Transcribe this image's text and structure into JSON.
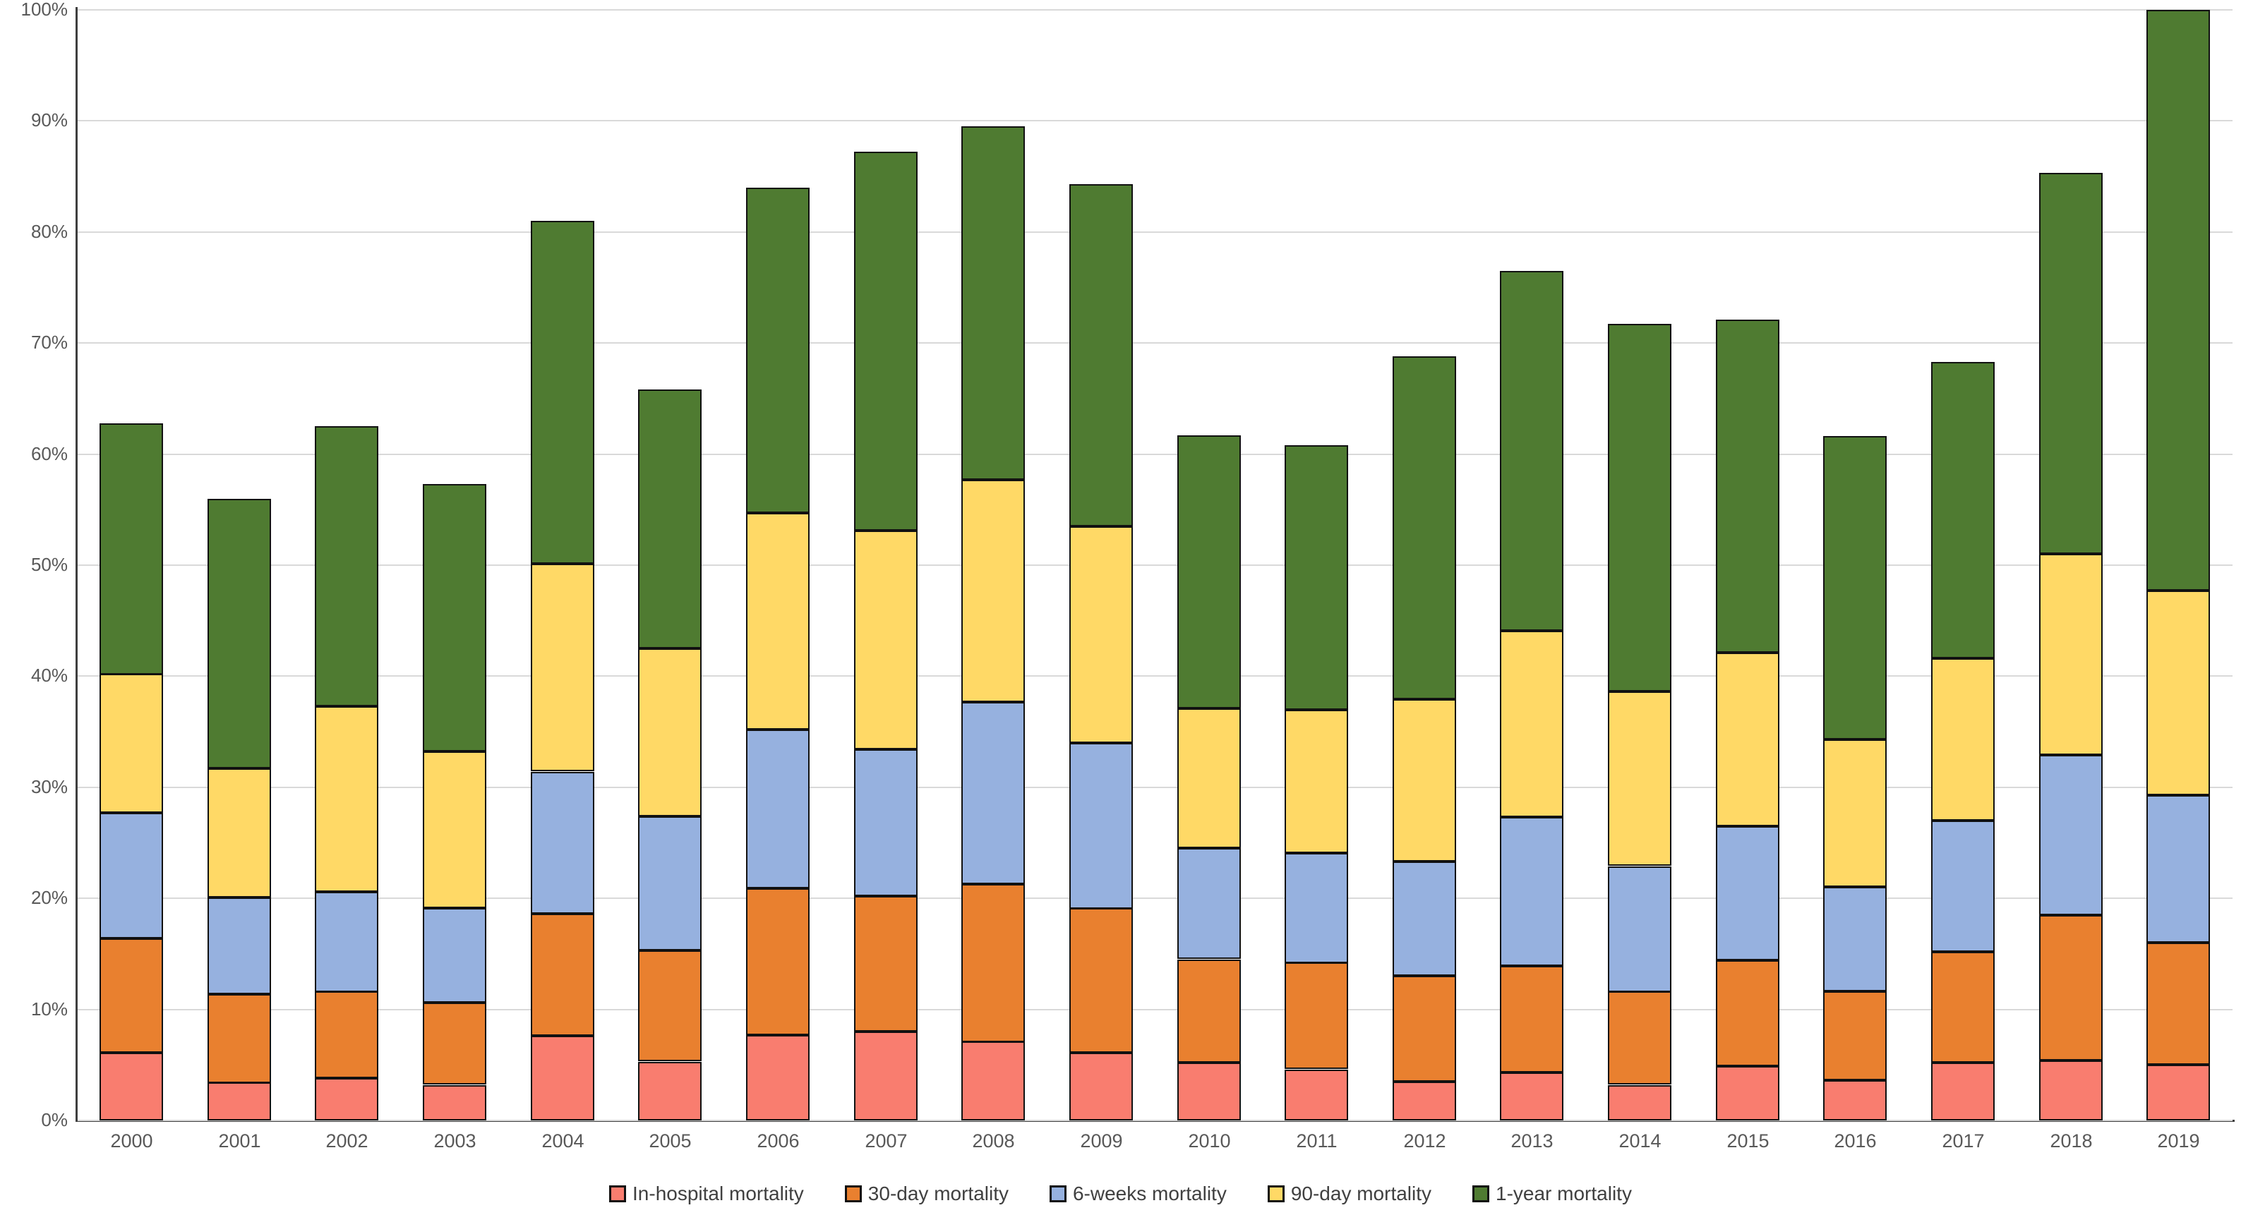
{
  "chart_data": {
    "type": "bar",
    "stacked": true,
    "unit": "percent",
    "title": "",
    "xlabel": "",
    "ylabel": "",
    "grid": true,
    "legend_position": "bottom",
    "categories": [
      "2000",
      "2001",
      "2002",
      "2003",
      "2004",
      "2005",
      "2006",
      "2007",
      "2008",
      "2009",
      "2010",
      "2011",
      "2012",
      "2013",
      "2014",
      "2015",
      "2016",
      "2017",
      "2018",
      "2019"
    ],
    "series": [
      {
        "name": "In-hospital mortality",
        "color": "#f97d6f",
        "values": [
          6.1,
          3.4,
          3.8,
          3.2,
          7.6,
          5.3,
          7.7,
          8.0,
          7.1,
          6.1,
          5.2,
          4.6,
          3.5,
          4.3,
          3.2,
          4.9,
          3.6,
          5.2,
          5.4,
          5.0
        ]
      },
      {
        "name": "30-day mortality",
        "color": "#e9802f",
        "values": [
          10.3,
          8.0,
          7.8,
          7.4,
          11.0,
          10.0,
          13.2,
          12.2,
          14.2,
          13.0,
          9.3,
          9.6,
          9.5,
          9.6,
          8.4,
          9.5,
          8.0,
          10.0,
          13.1,
          11.0
        ]
      },
      {
        "name": "6-weeks mortality",
        "color": "#96b1df",
        "values": [
          11.3,
          8.7,
          9.0,
          8.5,
          12.8,
          12.1,
          14.3,
          13.2,
          16.4,
          14.9,
          10.0,
          9.9,
          10.3,
          13.4,
          11.3,
          12.1,
          9.4,
          11.8,
          14.4,
          13.3
        ]
      },
      {
        "name": "90-day mortality",
        "color": "#ffd966",
        "values": [
          12.5,
          11.6,
          16.7,
          14.1,
          18.7,
          15.1,
          19.5,
          19.7,
          20.0,
          19.5,
          12.6,
          12.9,
          14.6,
          16.8,
          15.7,
          15.6,
          13.3,
          14.6,
          18.1,
          18.4
        ]
      },
      {
        "name": "1-year mortality",
        "color": "#4f7b31",
        "values": [
          22.6,
          24.3,
          25.2,
          24.1,
          30.9,
          23.3,
          29.3,
          34.1,
          31.8,
          30.8,
          24.6,
          23.8,
          30.9,
          32.4,
          33.1,
          30.0,
          27.3,
          26.7,
          34.3,
          52.3
        ]
      }
    ],
    "y_axis": {
      "min": 0,
      "max": 100,
      "step": 10,
      "tick_labels": [
        "0%",
        "10%",
        "20%",
        "30%",
        "40%",
        "50%",
        "60%",
        "70%",
        "80%",
        "90%",
        "100%"
      ]
    }
  },
  "style_tokens": {
    "gridline_color": "#d9d9d9",
    "axis_line_color": "#3f3f3f",
    "tick_label_color": "#595959",
    "legend_label_color": "#404040",
    "segment_border_color": "#111111",
    "background_color": "#ffffff"
  }
}
